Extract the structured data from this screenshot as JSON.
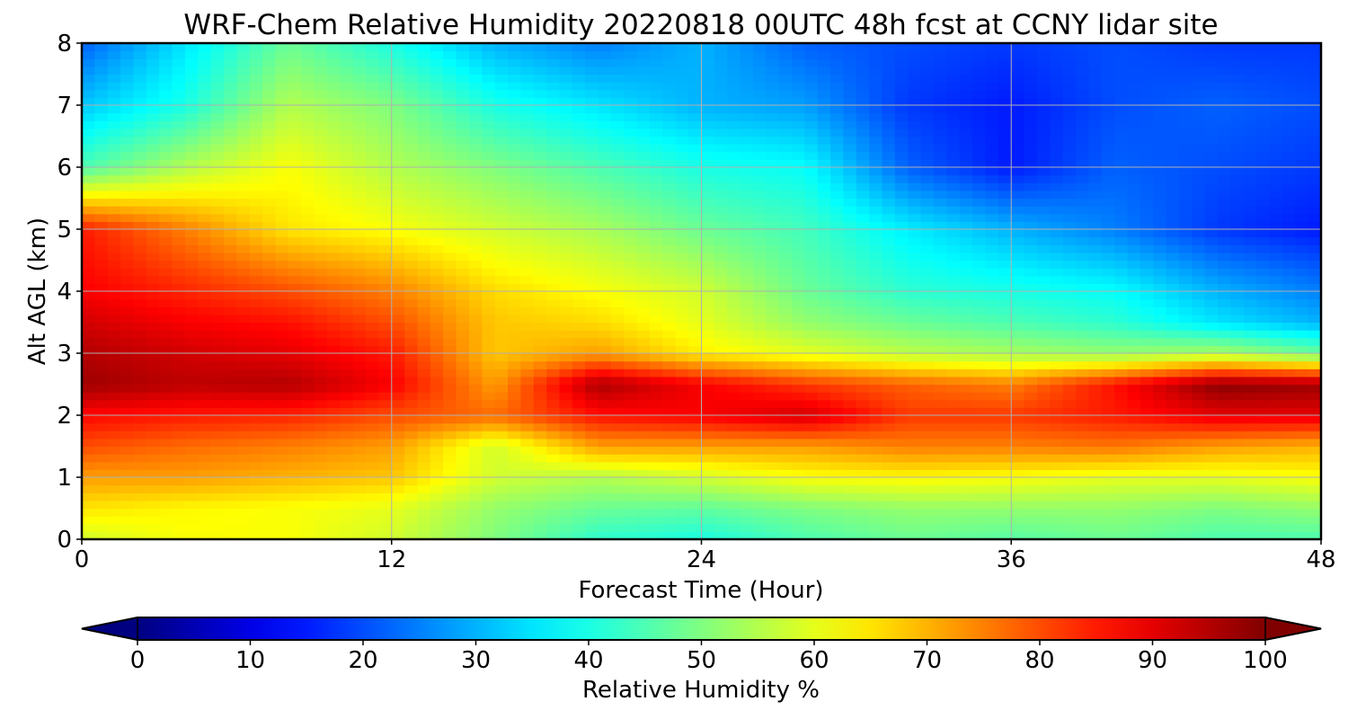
{
  "chart_data": {
    "type": "heatmap",
    "title": "WRF-Chem Relative Humidity 20220818 00UTC 48h fcst at CCNY lidar site",
    "xlabel": "Forecast Time (Hour)",
    "ylabel": "Alt AGL (km)",
    "xlim": [
      0,
      48
    ],
    "ylim": [
      0,
      8
    ],
    "xticks": [
      0,
      12,
      24,
      36,
      48
    ],
    "yticks": [
      0,
      1,
      2,
      3,
      4,
      5,
      6,
      7,
      8
    ],
    "grid": true,
    "colormap": "jet",
    "colorbar": {
      "label": "Relative Humidity %",
      "orientation": "horizontal",
      "placement": "bottom",
      "extend": "both",
      "range": [
        0,
        100
      ],
      "ticks": [
        0,
        10,
        20,
        30,
        40,
        50,
        60,
        70,
        80,
        90,
        100
      ]
    },
    "x": [
      0,
      4,
      8,
      12,
      16,
      20,
      24,
      28,
      32,
      36,
      40,
      44,
      48
    ],
    "y": [
      0,
      0.5,
      1,
      1.5,
      2,
      2.5,
      3,
      3.5,
      4,
      5,
      6,
      7,
      8
    ],
    "values": [
      [
        58,
        62,
        62,
        58,
        50,
        42,
        40,
        45,
        48,
        46,
        48,
        45,
        45
      ],
      [
        65,
        63,
        62,
        60,
        52,
        48,
        47,
        50,
        52,
        52,
        52,
        50,
        52
      ],
      [
        72,
        72,
        70,
        68,
        58,
        55,
        58,
        62,
        63,
        62,
        60,
        60,
        62
      ],
      [
        80,
        77,
        75,
        72,
        58,
        72,
        72,
        72,
        75,
        75,
        76,
        72,
        70
      ],
      [
        87,
        85,
        84,
        80,
        77,
        86,
        88,
        92,
        82,
        82,
        85,
        90,
        90
      ],
      [
        97,
        94,
        95,
        88,
        72,
        96,
        88,
        82,
        78,
        75,
        86,
        99,
        97
      ],
      [
        95,
        92,
        90,
        85,
        68,
        72,
        64,
        60,
        56,
        54,
        52,
        54,
        48
      ],
      [
        92,
        88,
        86,
        80,
        68,
        66,
        60,
        52,
        48,
        45,
        42,
        35,
        30
      ],
      [
        88,
        84,
        80,
        75,
        66,
        62,
        58,
        48,
        42,
        40,
        38,
        30,
        25
      ],
      [
        85,
        75,
        65,
        62,
        58,
        54,
        48,
        44,
        36,
        30,
        25,
        18,
        15
      ],
      [
        45,
        55,
        62,
        55,
        50,
        45,
        40,
        38,
        22,
        15,
        22,
        20,
        18
      ],
      [
        32,
        40,
        55,
        50,
        40,
        35,
        30,
        28,
        18,
        15,
        20,
        22,
        20
      ],
      [
        22,
        35,
        48,
        40,
        30,
        25,
        30,
        22,
        20,
        18,
        20,
        18,
        18
      ]
    ]
  }
}
